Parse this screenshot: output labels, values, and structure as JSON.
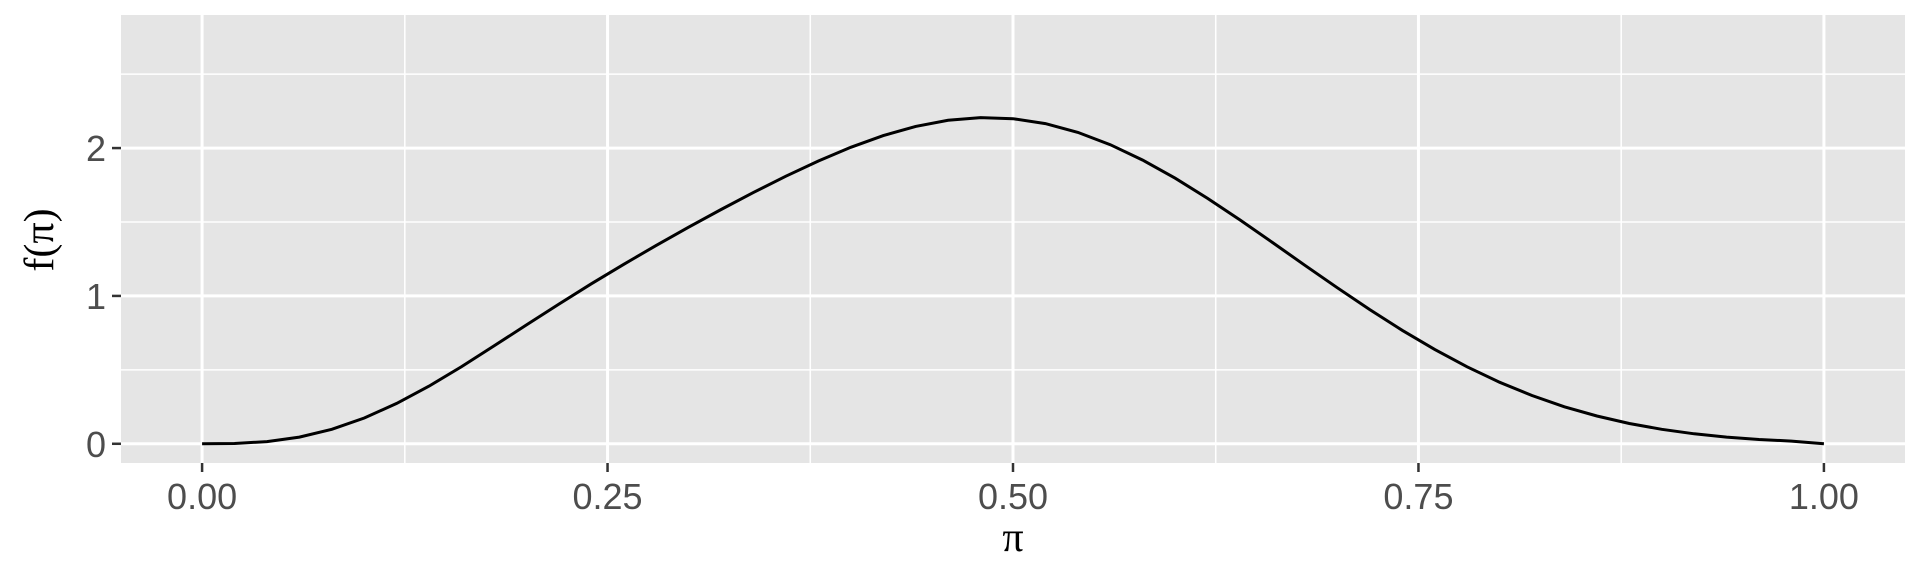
{
  "chart_data": {
    "type": "line",
    "title": "",
    "xlabel": "π",
    "ylabel": "f(π)",
    "xlim": [
      -0.05,
      1.05
    ],
    "ylim": [
      -0.13,
      2.9
    ],
    "x_major_ticks": [
      0,
      0.25,
      0.5,
      0.75,
      1
    ],
    "x_tick_labels": [
      "0.00",
      "0.25",
      "0.50",
      "0.75",
      "1.00"
    ],
    "x_minor_ticks": [
      0.125,
      0.375,
      0.625,
      0.875
    ],
    "y_major_ticks": [
      0,
      1,
      2
    ],
    "y_tick_labels": [
      "0",
      "1",
      "2"
    ],
    "y_minor_ticks": [
      0.5,
      1.5,
      2.5
    ],
    "grid": true,
    "series": [
      {
        "x": [
          0.0,
          0.02,
          0.04,
          0.06,
          0.08,
          0.1,
          0.12,
          0.14,
          0.16,
          0.18,
          0.2,
          0.22,
          0.24,
          0.26,
          0.28,
          0.3,
          0.32,
          0.34,
          0.36,
          0.38,
          0.4,
          0.42,
          0.44,
          0.46,
          0.48,
          0.5,
          0.52,
          0.54,
          0.56,
          0.58,
          0.6,
          0.62,
          0.64,
          0.66,
          0.68,
          0.7,
          0.72,
          0.74,
          0.76,
          0.78,
          0.8,
          0.82,
          0.84,
          0.86,
          0.88,
          0.9,
          0.92,
          0.94,
          0.96,
          0.98,
          1.0
        ],
        "y": [
          0,
          0.0019,
          0.0145,
          0.0451,
          0.0978,
          0.1742,
          0.2728,
          0.3903,
          0.5218,
          0.6617,
          0.8038,
          0.9449,
          1.082,
          1.2141,
          1.3417,
          1.4651,
          1.5846,
          1.6999,
          1.8099,
          1.9126,
          2.0052,
          2.0843,
          2.1464,
          2.188,
          2.2062,
          2.1988,
          2.1653,
          2.106,
          2.0228,
          1.9183,
          1.796,
          1.6596,
          1.5134,
          1.3613,
          1.2073,
          1.0549,
          0.9074,
          0.7678,
          0.6381,
          0.5204,
          0.4162,
          0.3262,
          0.2503,
          0.1878,
          0.1374,
          0.0978,
          0.0676,
          0.0453,
          0.0292,
          0.018,
          0
        ]
      }
    ],
    "colors": {
      "panel": "#e5e5e5",
      "grid": "#ffffff",
      "line": "#000000",
      "tick": "#333333"
    }
  }
}
